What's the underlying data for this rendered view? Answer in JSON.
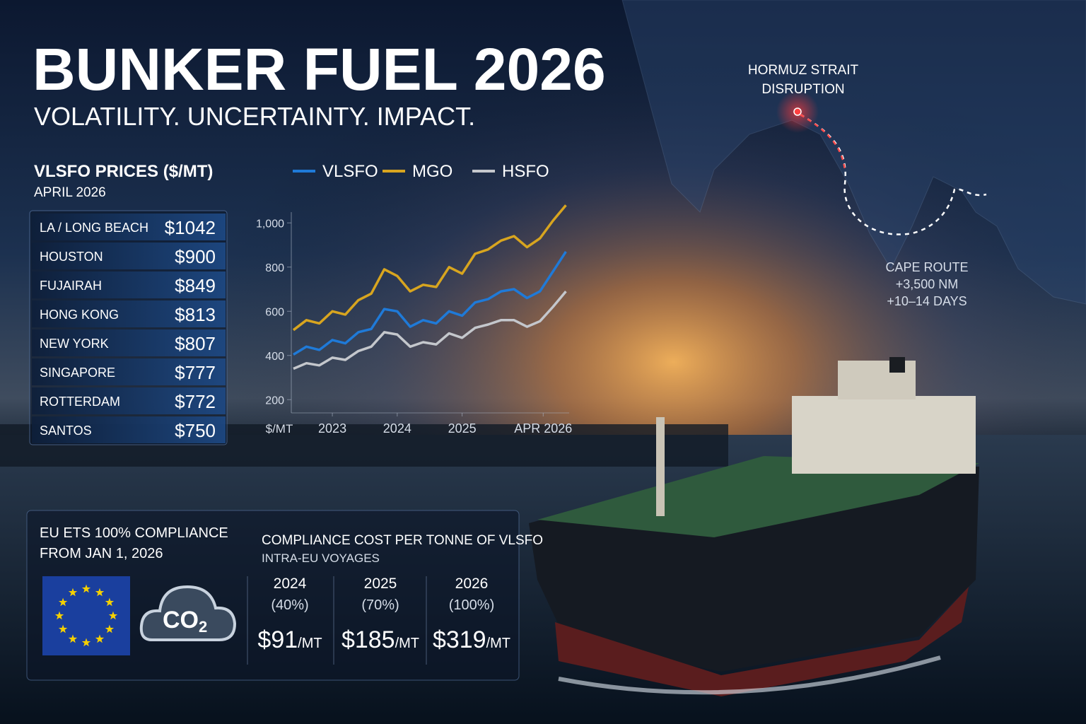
{
  "header": {
    "title": "BUNKER FUEL 2026",
    "subtitle": "VOLATILITY. UNCERTAINTY. IMPACT."
  },
  "prices": {
    "title": "VLSFO PRICES ($/MT)",
    "date": "APRIL 2026",
    "rows": [
      [
        "LA / LONG BEACH",
        "$1042"
      ],
      [
        "HOUSTON",
        "$900"
      ],
      [
        "FUJAIRAH",
        "$849"
      ],
      [
        "HONG KONG",
        "$813"
      ],
      [
        "NEW YORK",
        "$807"
      ],
      [
        "SINGAPORE",
        "$777"
      ],
      [
        "ROTTERDAM",
        "$772"
      ],
      [
        "SANTOS",
        "$750"
      ]
    ]
  },
  "chart_data": {
    "type": "line",
    "axis_label": "$/MT",
    "x": [
      2022.4,
      2022.6,
      2022.8,
      2023.0,
      2023.2,
      2023.4,
      2023.6,
      2023.8,
      2024.0,
      2024.2,
      2024.4,
      2024.6,
      2024.8,
      2025.0,
      2025.2,
      2025.4,
      2025.6,
      2025.8,
      2026.0,
      2026.2,
      2026.4,
      2026.6
    ],
    "series": [
      {
        "name": "VLSFO",
        "color": "#1f7ad8",
        "values": [
          404,
          440,
          425,
          470,
          455,
          505,
          520,
          610,
          600,
          530,
          560,
          545,
          600,
          580,
          640,
          655,
          690,
          700,
          660,
          690,
          780,
          870
        ]
      },
      {
        "name": "MGO",
        "color": "#d8a51f",
        "values": [
          515,
          560,
          545,
          600,
          585,
          650,
          680,
          790,
          760,
          690,
          720,
          710,
          800,
          770,
          860,
          880,
          920,
          940,
          890,
          930,
          1010,
          1080
        ]
      },
      {
        "name": "HSFO",
        "color": "#c4c7cc",
        "values": [
          340,
          365,
          355,
          390,
          380,
          420,
          440,
          505,
          495,
          440,
          460,
          450,
          500,
          480,
          525,
          540,
          560,
          560,
          530,
          555,
          620,
          690
        ]
      }
    ],
    "xlim": [
      2022.4,
      2026.65
    ],
    "xticks": [
      {
        "value": 2023,
        "label": "2023"
      },
      {
        "value": 2024,
        "label": "2024"
      },
      {
        "value": 2025,
        "label": "2025"
      },
      {
        "value": 2026.25,
        "label": "APR 2026"
      }
    ],
    "ylim": [
      140,
      1100
    ],
    "yticks": [
      200,
      400,
      600,
      800,
      {
        "value": 1000,
        "label": "1,000"
      }
    ],
    "grid": false,
    "legend": "top"
  },
  "map": {
    "hormuz": [
      "HORMUZ STRAIT",
      "DISRUPTION"
    ],
    "cape": [
      "CAPE ROUTE",
      "+3,500 NM",
      "+10–14 DAYS"
    ]
  },
  "ets": {
    "title": [
      "EU ETS 100% COMPLIANCE",
      "FROM JAN 1, 2026"
    ],
    "icon": [
      "CO",
      "2"
    ],
    "cost_title": "COMPLIANCE COST PER TONNE OF VLSFO",
    "cost_subtitle": "INTRA-EU VOYAGES",
    "columns": [
      {
        "year": "2024",
        "share": "(40%)",
        "cost": "$91",
        "unit": "/MT"
      },
      {
        "year": "2025",
        "share": "(70%)",
        "cost": "$185",
        "unit": "/MT"
      },
      {
        "year": "2026",
        "share": "(100%)",
        "cost": "$319",
        "unit": "/MT"
      }
    ]
  }
}
